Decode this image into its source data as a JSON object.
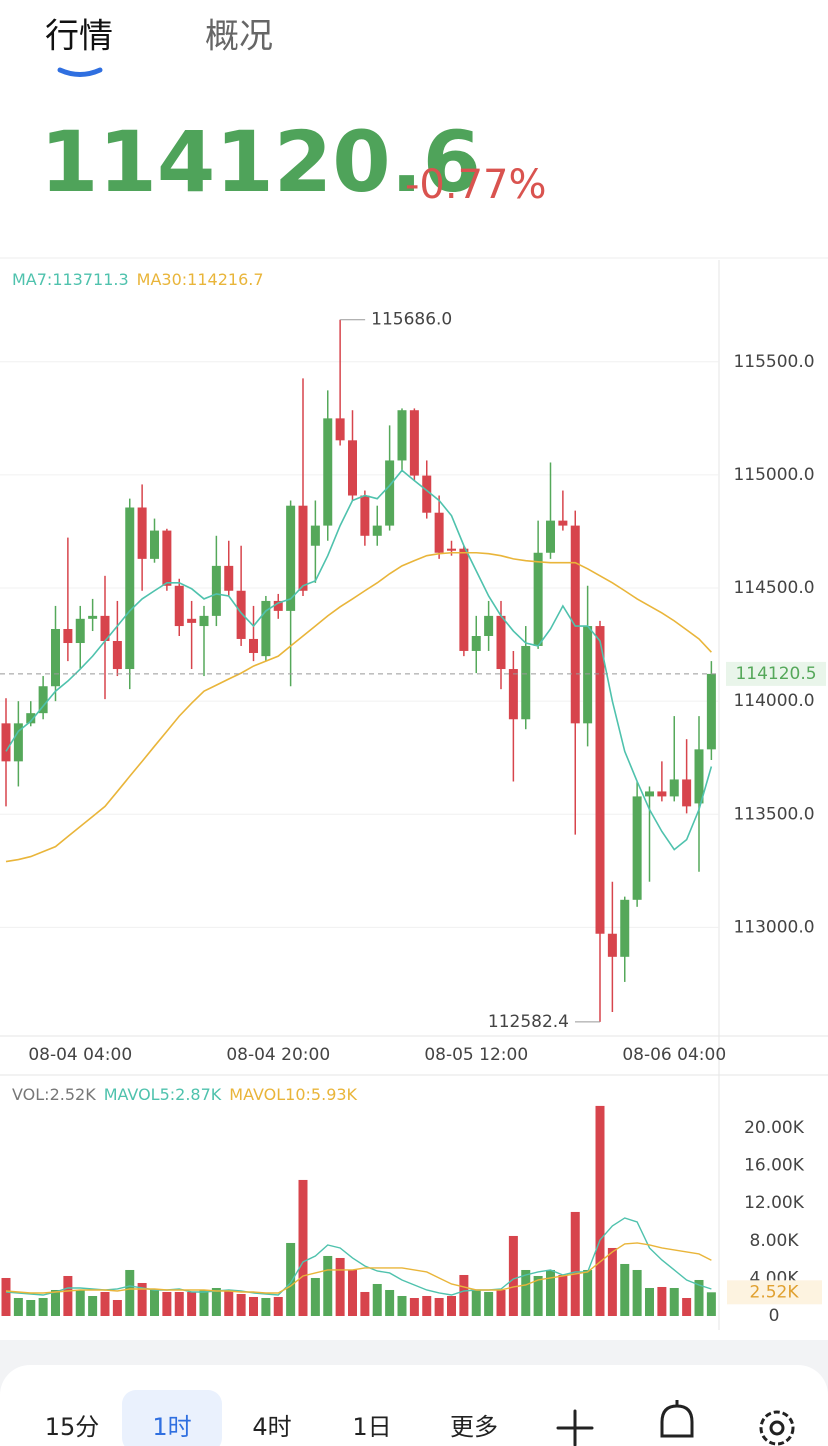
{
  "tabs": [
    "行情",
    "概况"
  ],
  "price": "114120.6",
  "change": "-0.77%",
  "toolbar": [
    "15分",
    "1时",
    "4时",
    "1日",
    "更多"
  ],
  "chart_data": [
    {
      "type": "candlestick",
      "categories": [
        null,
        null,
        null,
        null,
        null,
        null,
        "08-04 04:00",
        null,
        null,
        null,
        null,
        null,
        null,
        null,
        null,
        null,
        null,
        null,
        null,
        null,
        null,
        null,
        "08-04 20:00",
        null,
        null,
        null,
        null,
        null,
        null,
        null,
        null,
        null,
        null,
        null,
        null,
        null,
        null,
        null,
        "08-05 12:00",
        null,
        null,
        null,
        null,
        null,
        null,
        null,
        null,
        null,
        null,
        null,
        null,
        null,
        null,
        null,
        "08-06 04:00",
        null,
        null,
        null
      ],
      "open": [
        113902,
        113734,
        113902,
        113947,
        114066,
        114319,
        114257,
        114364,
        114377,
        114266,
        114142,
        114856,
        114629,
        114754,
        114510,
        114364,
        114332,
        114377,
        114598,
        114488,
        114275,
        114199,
        114443,
        114399,
        114864,
        114687,
        114776,
        115250,
        115153,
        114909,
        114731,
        114776,
        115064,
        115286,
        114997,
        114833,
        114674,
        114674,
        114222,
        114288,
        114377,
        114142,
        113920,
        114244,
        114656,
        114798,
        114776,
        113902,
        114332,
        112972,
        112870,
        113122,
        113579,
        113601,
        113579,
        113654,
        113548,
        113787
      ],
      "high": [
        114013,
        114000,
        114000,
        114111,
        114421,
        114723,
        114421,
        114452,
        114554,
        114443,
        114895,
        114958,
        114807,
        114762,
        114541,
        114443,
        114421,
        114731,
        114709,
        114687,
        114421,
        114465,
        114474,
        114887,
        115427,
        114887,
        115374,
        115686,
        115286,
        114931,
        114864,
        115219,
        115294,
        115294,
        115064,
        114909,
        114709,
        114687,
        114377,
        114443,
        114443,
        114222,
        114332,
        114798,
        115055,
        114931,
        114842,
        114510,
        114355,
        113202,
        113136,
        113645,
        113623,
        113734,
        113934,
        113832,
        113934,
        114177
      ],
      "low": [
        113535,
        113623,
        113889,
        113920,
        114000,
        114177,
        114142,
        114310,
        114009,
        114111,
        114053,
        114488,
        114612,
        114488,
        114288,
        114142,
        114111,
        114332,
        114465,
        114244,
        114177,
        114177,
        114364,
        114066,
        114465,
        114523,
        114709,
        115130,
        114887,
        114687,
        114687,
        114754,
        115020,
        114975,
        114807,
        114629,
        114643,
        114199,
        114124,
        114222,
        114053,
        113645,
        113876,
        114231,
        114629,
        114754,
        113410,
        113800,
        112582.4,
        112626,
        112759,
        113091,
        113202,
        113557,
        113557,
        113504,
        113246,
        113740
      ],
      "close": [
        113734,
        113902,
        113947,
        114066,
        114319,
        114257,
        114364,
        114377,
        114266,
        114142,
        114856,
        114629,
        114754,
        114510,
        114332,
        114346,
        114377,
        114598,
        114488,
        114275,
        114213,
        114443,
        114399,
        114864,
        114488,
        114776,
        115250,
        115153,
        114909,
        114731,
        114776,
        115064,
        115286,
        114997,
        114833,
        114656,
        114665,
        114222,
        114288,
        114377,
        114142,
        113920,
        114244,
        114656,
        114798,
        114776,
        113902,
        114332,
        112972,
        112870,
        113122,
        113579,
        113601,
        113579,
        113654,
        113535,
        113787,
        114120.5
      ],
      "up_color": "#55a85a",
      "down_color": "#d7444c",
      "lines": [
        {
          "name": "MA7:113711.3",
          "color": "#4fc2ad",
          "values": [
            113778,
            113867,
            113911,
            113978,
            114044,
            114089,
            114142,
            114199,
            114266,
            114332,
            114399,
            114452,
            114488,
            114523,
            114523,
            114497,
            114452,
            114474,
            114465,
            114390,
            114332,
            114399,
            114434,
            114452,
            114510,
            114532,
            114643,
            114776,
            114887,
            114909,
            114895,
            114953,
            115020,
            114975,
            114931,
            114887,
            114820,
            114687,
            114576,
            114465,
            114377,
            114310,
            114257,
            114244,
            114319,
            114421,
            114332,
            114332,
            114266,
            114000,
            113778,
            113645,
            113521,
            113424,
            113344,
            113388,
            113521,
            113711.3
          ]
        },
        {
          "name": "MA30:114216.7",
          "color": "#e9b53a",
          "values": [
            113291,
            113300,
            113313,
            113335,
            113357,
            113402,
            113446,
            113490,
            113535,
            113601,
            113668,
            113734,
            113801,
            113867,
            113934,
            113991,
            114044,
            114071,
            114098,
            114124,
            114155,
            114177,
            114199,
            114244,
            114288,
            114332,
            114377,
            114417,
            114452,
            114488,
            114523,
            114563,
            114598,
            114621,
            114643,
            114652,
            114656,
            114656,
            114656,
            114652,
            114643,
            114629,
            114621,
            114616,
            114612,
            114612,
            114612,
            114585,
            114554,
            114523,
            114488,
            114452,
            114421,
            114390,
            114355,
            114315,
            114275,
            114216.7
          ]
        }
      ],
      "ylim": [
        112520,
        115950
      ],
      "yticks": [
        {
          "value": 113000,
          "label": "113000.0"
        },
        {
          "value": 113500,
          "label": "113500.0"
        },
        {
          "value": 114000,
          "label": "114000.0"
        },
        {
          "value": 114500,
          "label": "114500.0"
        },
        {
          "value": 115000,
          "label": "115000.0"
        },
        {
          "value": 115500,
          "label": "115500.0"
        }
      ],
      "grid": true,
      "last_price": {
        "value": 114120.5,
        "label": "114120.5"
      },
      "annotations": [
        {
          "value": 115686,
          "label": "115686.0"
        },
        {
          "value": 112582.4,
          "label": "112582.4"
        }
      ]
    },
    {
      "type": "volume",
      "series": [
        {
          "name": "VOL:2.52K",
          "values": [
            4043,
            1915,
            1702,
            1915,
            2766,
            4256,
            2766,
            2128,
            2554,
            1702,
            4894,
            3511,
            2766,
            2554,
            2554,
            2554,
            2766,
            2979,
            2766,
            2341,
            2022,
            1915,
            2022,
            7767,
            14470,
            4043,
            6384,
            6171,
            4894,
            2554,
            3405,
            2766,
            2128,
            1915,
            2128,
            1915,
            2128,
            4362,
            2766,
            2554,
            2766,
            8512,
            4894,
            4256,
            4894,
            4362,
            11066,
            4894,
            22344,
            7235,
            5533,
            4894,
            2979,
            3086,
            2979,
            1915,
            3830,
            2520
          ]
        }
      ],
      "lines": [
        {
          "name": "MAVOL5:2.87K",
          "color": "#4fc2ad",
          "values": [
            2554,
            2447,
            2341,
            2234,
            2554,
            2979,
            2979,
            2873,
            2766,
            2873,
            3192,
            2979,
            2766,
            2766,
            2873,
            2554,
            2554,
            2660,
            2766,
            2660,
            2447,
            2341,
            2234,
            3511,
            5746,
            6384,
            7554,
            7235,
            6171,
            5320,
            4788,
            4575,
            3830,
            3298,
            2766,
            2447,
            2234,
            2660,
            2766,
            2766,
            2873,
            3937,
            4362,
            4682,
            4894,
            4362,
            4682,
            4682,
            8086,
            9576,
            10427,
            10002,
            7235,
            5958,
            4894,
            3830,
            3298,
            2870
          ]
        },
        {
          "name": "MAVOL10:5.93K",
          "color": "#e9b53a",
          "values": [
            2660,
            2554,
            2447,
            2447,
            2554,
            2660,
            2766,
            2766,
            2766,
            2660,
            2873,
            2873,
            2873,
            2766,
            2766,
            2766,
            2766,
            2660,
            2660,
            2554,
            2554,
            2447,
            2447,
            3192,
            4256,
            4575,
            4894,
            4894,
            4894,
            5107,
            5107,
            5107,
            5107,
            4894,
            4682,
            4043,
            3405,
            3085,
            2766,
            2766,
            2766,
            3085,
            3298,
            3830,
            4043,
            4256,
            4469,
            4682,
            5746,
            6810,
            7661,
            7767,
            7554,
            7235,
            7022,
            6810,
            6597,
            5930
          ]
        }
      ],
      "ylim": [
        0,
        25100
      ],
      "yticks": [
        0,
        {
          "value": 4000,
          "label": "4.00K"
        },
        {
          "value": 8000,
          "label": "8.00K"
        },
        {
          "value": 12000,
          "label": "12.00K"
        },
        {
          "value": 16000,
          "label": "16.00K"
        },
        {
          "value": 20000,
          "label": "20.00K"
        }
      ],
      "grid": false,
      "last_value": {
        "value": 2520,
        "label": "2.52K"
      }
    }
  ]
}
